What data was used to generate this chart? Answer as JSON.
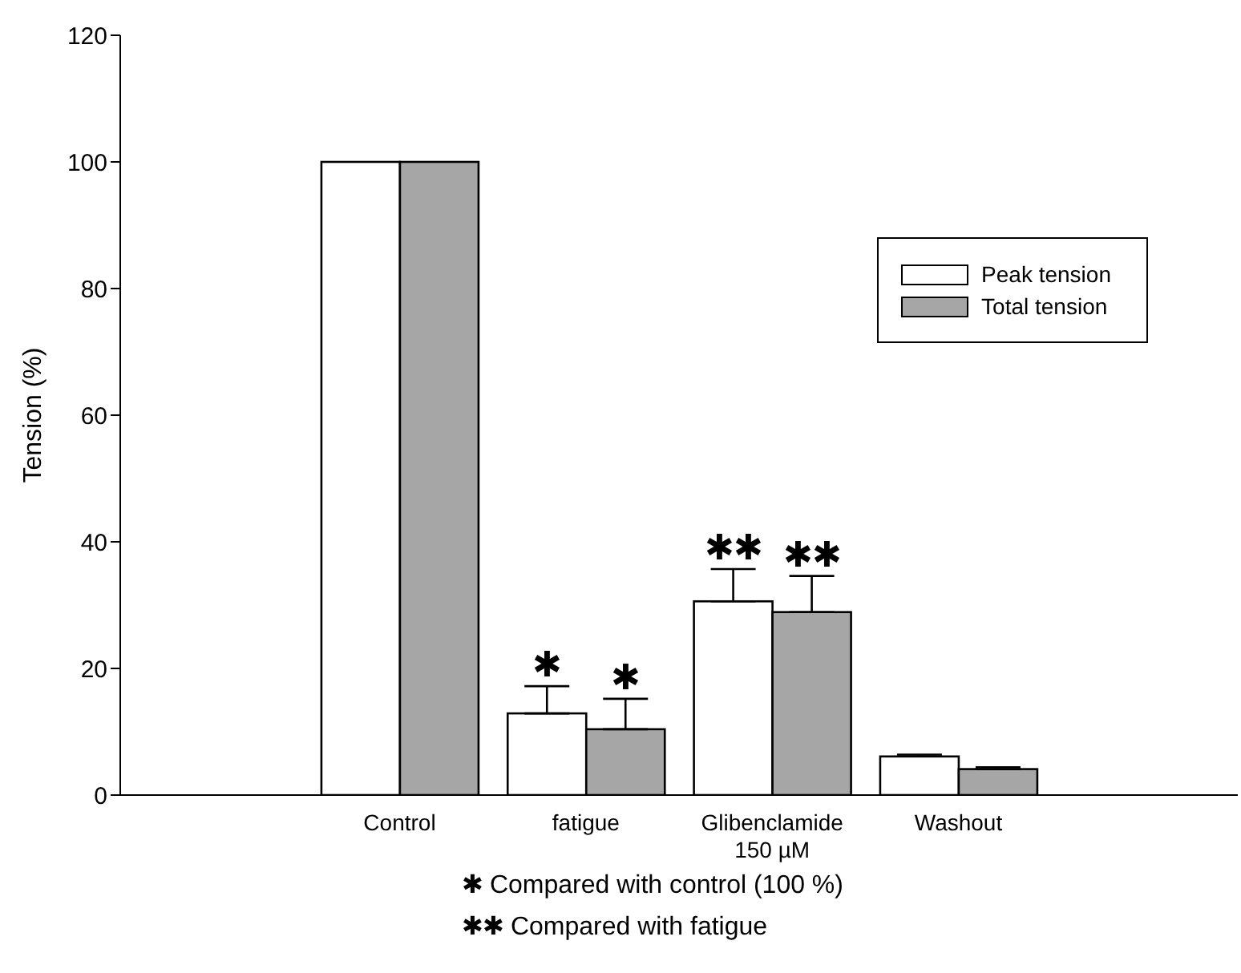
{
  "chart_data": {
    "type": "bar",
    "ylabel": "Tension (%)",
    "categories": [
      null,
      "Control",
      "fatigue",
      "Glibenclamide\n150 µM",
      "Washout",
      null
    ],
    "series": [
      {
        "name": "Peak tension",
        "color": "#ffffff",
        "values": [
          null,
          100,
          12.9,
          30.6,
          6.1,
          null
        ],
        "errors": [
          null,
          null,
          [
            12.9,
            17.2
          ],
          [
            30.6,
            35.7
          ],
          [
            6.1,
            6.4
          ],
          null
        ],
        "value_labels": [
          null,
          null,
          "✱",
          "✱✱",
          null,
          null
        ]
      },
      {
        "name": "Total tension",
        "color": "#a6a6a6",
        "values": [
          null,
          100,
          10.4,
          28.9,
          4.1,
          null
        ],
        "errors": [
          null,
          null,
          [
            10.4,
            15.2
          ],
          [
            28.9,
            34.6
          ],
          [
            4.1,
            4.4
          ],
          null
        ],
        "value_labels": [
          null,
          null,
          "✱",
          "✱✱",
          null,
          null
        ]
      }
    ],
    "ylim": [
      0,
      120
    ],
    "yticks": [
      0,
      20,
      40,
      60,
      80,
      100,
      120
    ],
    "grid": false,
    "legend": "top right",
    "annotations": [
      "✱ Compared with control (100 %)",
      "✱✱ Compared with fatigue"
    ]
  }
}
